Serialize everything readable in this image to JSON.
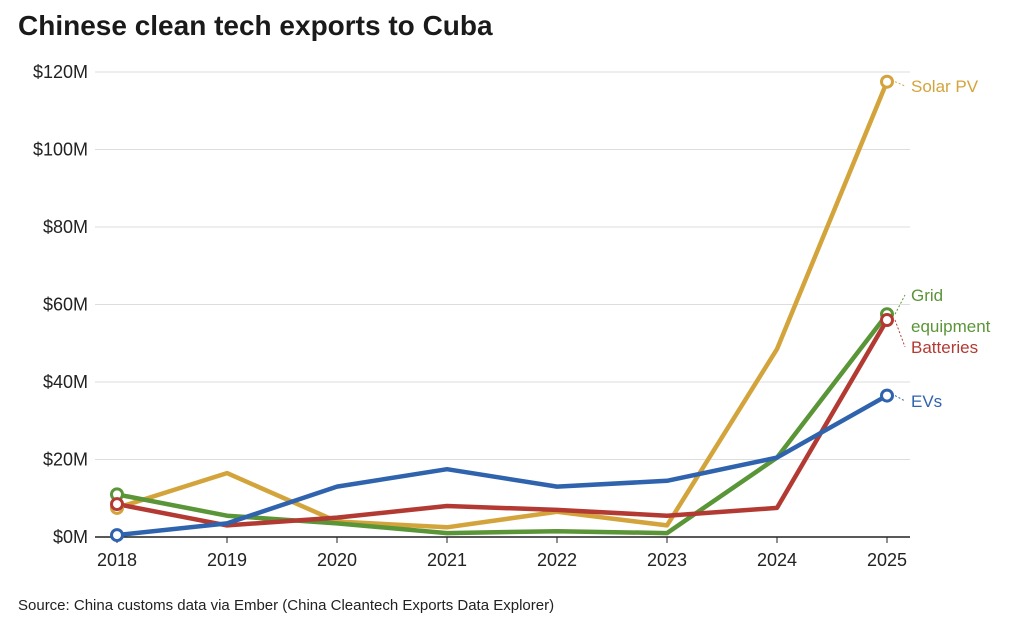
{
  "title": "Chinese clean tech exports to Cuba",
  "source": "Source: China customs data via Ember (China Cleantech Exports Data Explorer)",
  "chart_data": {
    "type": "line",
    "title": "Chinese clean tech exports to Cuba",
    "x": [
      "2018",
      "2019",
      "2020",
      "2021",
      "2022",
      "2023",
      "2024",
      "2025"
    ],
    "ylim": [
      0,
      120
    ],
    "yticks": [
      0,
      20,
      40,
      60,
      80,
      100,
      120
    ],
    "ytick_labels": [
      "$0M",
      "$20M",
      "$40M",
      "$60M",
      "$80M",
      "$100M",
      "$120M"
    ],
    "grid": true,
    "series": [
      {
        "name": "Solar PV",
        "color": "#d4a43c",
        "values": [
          7.5,
          16.5,
          4.0,
          2.5,
          6.5,
          3.0,
          48.5,
          117.5
        ]
      },
      {
        "name": "Grid equipment",
        "label_lines": [
          "Grid",
          "equipment"
        ],
        "color": "#5a9537",
        "values": [
          11.0,
          5.5,
          3.5,
          1.0,
          1.5,
          1.0,
          20.5,
          57.5
        ]
      },
      {
        "name": "Batteries",
        "color": "#b33a32",
        "values": [
          8.5,
          3.0,
          5.0,
          8.0,
          7.0,
          5.5,
          7.5,
          56.0
        ]
      },
      {
        "name": "EVs",
        "color": "#2f63ad",
        "values": [
          0.5,
          3.5,
          13.0,
          17.5,
          13.0,
          14.5,
          20.5,
          36.5
        ]
      }
    ]
  }
}
